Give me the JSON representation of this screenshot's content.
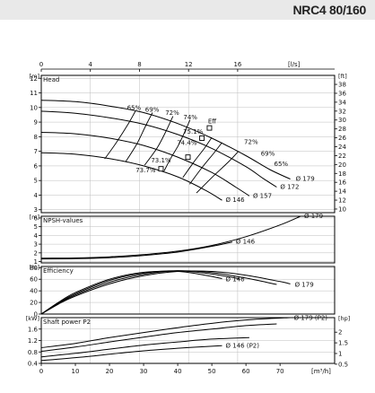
{
  "header": {
    "model": "NRC4 80/160"
  },
  "chart_data": {
    "type": "line",
    "title": "",
    "x_top": {
      "unit": "[l/s]",
      "ticks": [
        0,
        4,
        8,
        12,
        16
      ],
      "range": [
        0,
        23.9
      ]
    },
    "x_bottom": {
      "unit": "[m³/h]",
      "ticks": [
        0,
        10,
        20,
        30,
        40,
        50,
        60,
        70
      ],
      "range": [
        0,
        86
      ]
    },
    "panels": [
      {
        "id": "head",
        "label": "Head",
        "unit_left": "[m]",
        "unit_right": "[ft]",
        "y_range": [
          2.8,
          12.2
        ],
        "y_ticks": [
          3,
          4,
          5,
          6,
          7,
          8,
          9,
          10,
          11,
          12
        ],
        "y_right_ticks": [
          10,
          12,
          14,
          16,
          18,
          20,
          22,
          24,
          26,
          28,
          30,
          32,
          34,
          36,
          38
        ],
        "series": [
          {
            "name": "Ø 179",
            "points": [
              [
                0,
                10.5
              ],
              [
                10,
                10.4
              ],
              [
                20,
                10.1
              ],
              [
                30,
                9.65
              ],
              [
                40,
                8.9
              ],
              [
                50,
                7.9
              ],
              [
                60,
                6.7
              ],
              [
                67,
                5.75
              ],
              [
                73,
                5.1
              ]
            ]
          },
          {
            "name": "Ø 172",
            "points": [
              [
                0,
                9.75
              ],
              [
                10,
                9.6
              ],
              [
                20,
                9.3
              ],
              [
                30,
                8.85
              ],
              [
                40,
                8.15
              ],
              [
                50,
                7.2
              ],
              [
                60,
                5.95
              ],
              [
                65,
                5.15
              ],
              [
                69,
                4.55
              ]
            ]
          },
          {
            "name": "Ø 157",
            "points": [
              [
                0,
                8.3
              ],
              [
                10,
                8.2
              ],
              [
                20,
                7.9
              ],
              [
                30,
                7.4
              ],
              [
                40,
                6.6
              ],
              [
                50,
                5.55
              ],
              [
                57,
                4.55
              ],
              [
                61,
                3.95
              ]
            ]
          },
          {
            "name": "Ø 146",
            "points": [
              [
                0,
                6.9
              ],
              [
                10,
                6.8
              ],
              [
                20,
                6.5
              ],
              [
                30,
                6.0
              ],
              [
                40,
                5.25
              ],
              [
                48,
                4.35
              ],
              [
                53,
                3.65
              ]
            ]
          }
        ],
        "iso_efficiency": [
          {
            "label": "65%",
            "left": [
              [
                27.6,
                9.75
              ],
              [
                25.5,
                8.88
              ],
              [
                22.0,
                7.6
              ],
              [
                18.6,
                6.48
              ]
            ],
            "right": [
              [
                57.8,
                7.0
              ],
              [
                55.0,
                6.3
              ],
              [
                50.0,
                5.2
              ],
              [
                45.5,
                4.15
              ]
            ]
          },
          {
            "label": "69%",
            "left": [
              [
                32.6,
                9.65
              ],
              [
                30.5,
                8.7
              ],
              [
                28.0,
                7.5
              ],
              [
                24.7,
                6.27
              ]
            ],
            "right": [
              [
                53.0,
                7.6
              ],
              [
                50.5,
                6.85
              ],
              [
                47.0,
                5.85
              ],
              [
                43.5,
                4.75
              ]
            ]
          },
          {
            "label": "72%",
            "left": [
              [
                38.6,
                9.4
              ],
              [
                36.6,
                8.4
              ],
              [
                34.0,
                7.25
              ],
              [
                30.3,
                6.05
              ]
            ],
            "right": [
              [
                50.0,
                7.95
              ],
              [
                47.8,
                7.2
              ],
              [
                45.0,
                6.35
              ],
              [
                41.5,
                5.2
              ]
            ]
          },
          {
            "label": "74%",
            "left": [
              [
                43.6,
                9.15
              ],
              [
                42.0,
                8.3
              ],
              [
                40.3,
                7.45
              ],
              [
                37.9,
                6.5
              ],
              [
                36.0,
                5.65
              ]
            ]
          }
        ],
        "annotations": [
          {
            "text": "65%",
            "x": 27.2,
            "y": 9.85
          },
          {
            "text": "69%",
            "x": 32.5,
            "y": 9.7
          },
          {
            "text": "72%",
            "x": 38.4,
            "y": 9.5
          },
          {
            "text": "74%",
            "x": 43.7,
            "y": 9.2
          },
          {
            "text": "75.1%",
            "x": 44.5,
            "y": 8.2
          },
          {
            "text": "74.4%",
            "x": 42.7,
            "y": 7.45
          },
          {
            "text": "73.1%",
            "x": 35.1,
            "y": 6.25
          },
          {
            "text": "73.7%",
            "x": 30.6,
            "y": 5.55
          },
          {
            "text": "72%",
            "x": 61.5,
            "y": 7.5
          },
          {
            "text": "69%",
            "x": 66.4,
            "y": 6.7
          },
          {
            "text": "65%",
            "x": 70.3,
            "y": 6.0
          },
          {
            "text": "Eff",
            "x": 50.1,
            "y": 8.9
          }
        ],
        "bep_markers": [
          {
            "x": 49.3,
            "y": 8.6
          },
          {
            "x": 47.1,
            "y": 7.9
          },
          {
            "x": 43.0,
            "y": 6.6
          },
          {
            "x": 35.1,
            "y": 5.8
          }
        ]
      },
      {
        "id": "npsh",
        "label": "NPSH-values",
        "unit_left": "[m]",
        "y_range": [
          0.85,
          6.2
        ],
        "y_ticks": [
          1,
          2,
          3,
          4,
          5,
          6
        ],
        "series": [
          {
            "name": "Ø 179",
            "points": [
              [
                0,
                1.4
              ],
              [
                10,
                1.42
              ],
              [
                20,
                1.55
              ],
              [
                30,
                1.8
              ],
              [
                40,
                2.2
              ],
              [
                50,
                2.85
              ],
              [
                60,
                3.85
              ],
              [
                70,
                5.2
              ],
              [
                76,
                6.2
              ]
            ]
          },
          {
            "name": "Ø 146",
            "points": [
              [
                0,
                1.3
              ],
              [
                10,
                1.33
              ],
              [
                20,
                1.45
              ],
              [
                30,
                1.7
              ],
              [
                40,
                2.1
              ],
              [
                50,
                2.75
              ],
              [
                56,
                3.25
              ]
            ]
          }
        ]
      },
      {
        "id": "efficiency",
        "label": "Efficiency",
        "unit_left": "[%]",
        "y_range": [
          0,
          82
        ],
        "y_ticks": [
          0,
          20,
          40,
          60,
          80
        ],
        "series": [
          {
            "name": "Ø 179",
            "points": [
              [
                0,
                0
              ],
              [
                5,
                17
              ],
              [
                10,
                31
              ],
              [
                20,
                52
              ],
              [
                30,
                66
              ],
              [
                40,
                73.5
              ],
              [
                50,
                73.5
              ],
              [
                60,
                67
              ],
              [
                70,
                56
              ],
              [
                73,
                52
              ]
            ]
          },
          {
            "name": "Ø 172",
            "points": [
              [
                0,
                0
              ],
              [
                5,
                18
              ],
              [
                10,
                33
              ],
              [
                20,
                55
              ],
              [
                30,
                68.5
              ],
              [
                40,
                74.5
              ],
              [
                50,
                71.5
              ],
              [
                60,
                62
              ],
              [
                69,
                51
              ]
            ]
          },
          {
            "name": "Ø 157",
            "points": [
              [
                0,
                0
              ],
              [
                5,
                19
              ],
              [
                10,
                35
              ],
              [
                20,
                58
              ],
              [
                30,
                70.5
              ],
              [
                40,
                74.5
              ],
              [
                50,
                69
              ],
              [
                58,
                61
              ]
            ]
          },
          {
            "name": "Ø 146",
            "points": [
              [
                0,
                0
              ],
              [
                5,
                20
              ],
              [
                10,
                37
              ],
              [
                20,
                60
              ],
              [
                30,
                72
              ],
              [
                40,
                73.5
              ],
              [
                48,
                67
              ],
              [
                53,
                61
              ]
            ]
          }
        ]
      },
      {
        "id": "power",
        "label": "Shaft power P2",
        "unit_left": "[kW]",
        "unit_right": "[hp]",
        "y_range": [
          0.4,
          2.0
        ],
        "y_ticks": [
          0.4,
          0.8,
          1.2,
          1.6
        ],
        "y_right_ticks": [
          0.5,
          1,
          1.5,
          2
        ],
        "series": [
          {
            "name": "Ø 179 (P2)",
            "points": [
              [
                0,
                0.95
              ],
              [
                10,
                1.1
              ],
              [
                20,
                1.3
              ],
              [
                30,
                1.48
              ],
              [
                40,
                1.65
              ],
              [
                50,
                1.8
              ],
              [
                60,
                1.92
              ],
              [
                73,
                2.0
              ]
            ]
          },
          {
            "name": "Ø 172",
            "points": [
              [
                0,
                0.82
              ],
              [
                10,
                0.97
              ],
              [
                20,
                1.15
              ],
              [
                30,
                1.32
              ],
              [
                40,
                1.48
              ],
              [
                50,
                1.6
              ],
              [
                60,
                1.72
              ],
              [
                69,
                1.78
              ]
            ]
          },
          {
            "name": "Ø 157",
            "points": [
              [
                0,
                0.63
              ],
              [
                10,
                0.75
              ],
              [
                20,
                0.9
              ],
              [
                30,
                1.04
              ],
              [
                40,
                1.15
              ],
              [
                50,
                1.25
              ],
              [
                61,
                1.3
              ]
            ]
          },
          {
            "name": "Ø 146 (P2)",
            "points": [
              [
                0,
                0.5
              ],
              [
                10,
                0.6
              ],
              [
                20,
                0.72
              ],
              [
                30,
                0.84
              ],
              [
                40,
                0.93
              ],
              [
                50,
                1.0
              ],
              [
                53,
                1.02
              ]
            ]
          }
        ]
      }
    ]
  }
}
